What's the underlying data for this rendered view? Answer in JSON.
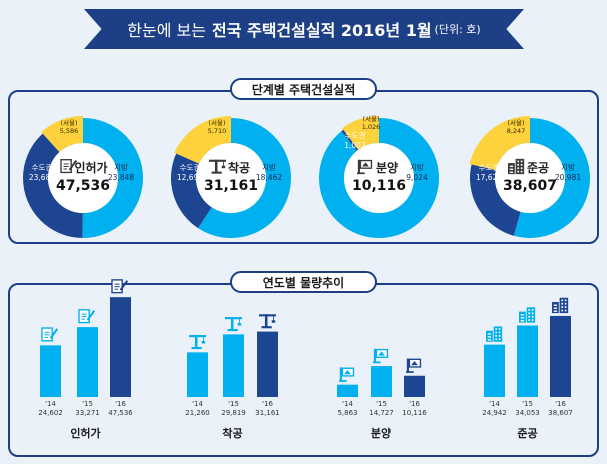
{
  "header": {
    "title_part1": "한눈에 보는",
    "title_part2": "전국 주택건설실적 2016년 1월",
    "unit": "(단위: 호)"
  },
  "section1": {
    "title": "단계별 주택건설실적"
  },
  "section2": {
    "title": "연도별 물량추이"
  },
  "colors": {
    "capital": "#1d4592",
    "provinces": "#00b0ef",
    "seoul": "#fdd23c",
    "bar_light": "#00b0ef",
    "bar_dark": "#1d4592",
    "navy": "#1d3f86"
  },
  "chart_data": [
    {
      "type": "pie",
      "title": "단계별 주택건설실적",
      "donuts": [
        {
          "label": "인허가",
          "total": "47,536",
          "icon": "document-pen-icon",
          "slices": [
            {
              "name": "지방",
              "value": 23848,
              "label": "23,848",
              "color": "#00b0ef"
            },
            {
              "name": "수도권",
              "value": 23688,
              "label": "23,688",
              "color": "#1d4592"
            },
            {
              "name": "(서울)",
              "value": 5586,
              "label": "5,586",
              "color": "#fdd23c",
              "subset": true
            }
          ]
        },
        {
          "label": "착공",
          "total": "31,161",
          "icon": "crane-icon",
          "slices": [
            {
              "name": "지방",
              "value": 18462,
              "label": "18,462",
              "color": "#00b0ef"
            },
            {
              "name": "수도권",
              "value": 12699,
              "label": "12,699",
              "color": "#1d4592"
            },
            {
              "name": "(서울)",
              "value": 5710,
              "label": "5,710",
              "color": "#fdd23c",
              "subset": true
            }
          ]
        },
        {
          "label": "분양",
          "total": "10,116",
          "icon": "sale-sign-icon",
          "slices": [
            {
              "name": "지방",
              "value": 9024,
              "label": "9,024",
              "color": "#00b0ef"
            },
            {
              "name": "수도권",
              "value": 1092,
              "label": "1,092",
              "color": "#1d4592"
            },
            {
              "name": "(서울)",
              "value": 1026,
              "label": "1,026",
              "color": "#fdd23c",
              "subset": true
            }
          ]
        },
        {
          "label": "준공",
          "total": "38,607",
          "icon": "buildings-icon",
          "slices": [
            {
              "name": "지방",
              "value": 20981,
              "label": "20,981",
              "color": "#00b0ef"
            },
            {
              "name": "수도권",
              "value": 17626,
              "label": "17,626",
              "color": "#1d4592"
            },
            {
              "name": "(서울)",
              "value": 8247,
              "label": "8,247",
              "color": "#fdd23c",
              "subset": true
            }
          ]
        }
      ]
    },
    {
      "type": "bar",
      "title": "연도별 물량추이",
      "groups": [
        {
          "label": "인허가",
          "years": [
            "'14",
            "'15",
            "'16"
          ],
          "values": [
            24602,
            33271,
            47536
          ],
          "labels": [
            "24,602",
            "33,271",
            "47,536"
          ],
          "icon": "document-pen-icon"
        },
        {
          "label": "착공",
          "years": [
            "'14",
            "'15",
            "'16"
          ],
          "values": [
            21260,
            29819,
            31161
          ],
          "labels": [
            "21,260",
            "29,819",
            "31,161"
          ],
          "icon": "crane-icon"
        },
        {
          "label": "분양",
          "years": [
            "'14",
            "'15",
            "'16"
          ],
          "values": [
            5863,
            14727,
            10116
          ],
          "labels": [
            "5,863",
            "14,727",
            "10,116"
          ],
          "icon": "sale-sign-icon"
        },
        {
          "label": "준공",
          "years": [
            "'14",
            "'15",
            "'16"
          ],
          "values": [
            24942,
            34053,
            38607
          ],
          "labels": [
            "24,942",
            "34,053",
            "38,607"
          ],
          "icon": "buildings-icon"
        }
      ]
    }
  ]
}
